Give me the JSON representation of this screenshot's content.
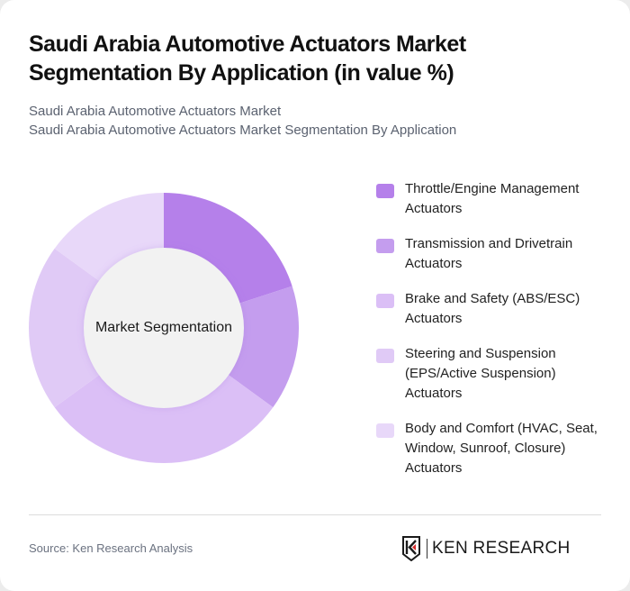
{
  "header": {
    "title": "Saudi Arabia Automotive Actuators Market Segmentation By Application (in value %)",
    "subtitle_line1": "Saudi Arabia Automotive Actuators Market",
    "subtitle_line2": "Saudi Arabia Automotive Actuators Market Segmentation By Application"
  },
  "chart": {
    "center_label": "Market Segmentation"
  },
  "legend": [
    {
      "label": "Throttle/Engine Management Actuators",
      "color": "#b580ea"
    },
    {
      "label": "Transmission and Drivetrain Actuators",
      "color": "#c49dee"
    },
    {
      "label": "Brake and Safety (ABS/ESC) Actuators",
      "color": "#dbbff6"
    },
    {
      "label": "Steering and Suspension (EPS/Active Suspension) Actuators",
      "color": "#e0caf6"
    },
    {
      "label": "Body and Comfort (HVAC, Seat, Window, Sunroof, Closure) Actuators",
      "color": "#e8d8f9"
    }
  ],
  "footer": {
    "source": "Source: Ken Research Analysis",
    "logo_text": "KEN RESEARCH",
    "logo_icon": "ken-research-logo-icon"
  },
  "chart_data": {
    "type": "pie",
    "subtype": "donut",
    "title": "Saudi Arabia Automotive Actuators Market Segmentation By Application (in value %)",
    "center_label": "Market Segmentation",
    "categories": [
      "Throttle/Engine Management Actuators",
      "Transmission and Drivetrain Actuators",
      "Brake and Safety (ABS/ESC) Actuators",
      "Steering and Suspension (EPS/Active Suspension) Actuators",
      "Body and Comfort (HVAC, Seat, Window, Sunroof, Closure) Actuators"
    ],
    "values": [
      20,
      15,
      30,
      20,
      15
    ],
    "colors": [
      "#b580ea",
      "#c49dee",
      "#dbbff6",
      "#e0caf6",
      "#e8d8f9"
    ],
    "unit": "%",
    "start_angle": "12 o'clock, clockwise",
    "legend_position": "right"
  }
}
